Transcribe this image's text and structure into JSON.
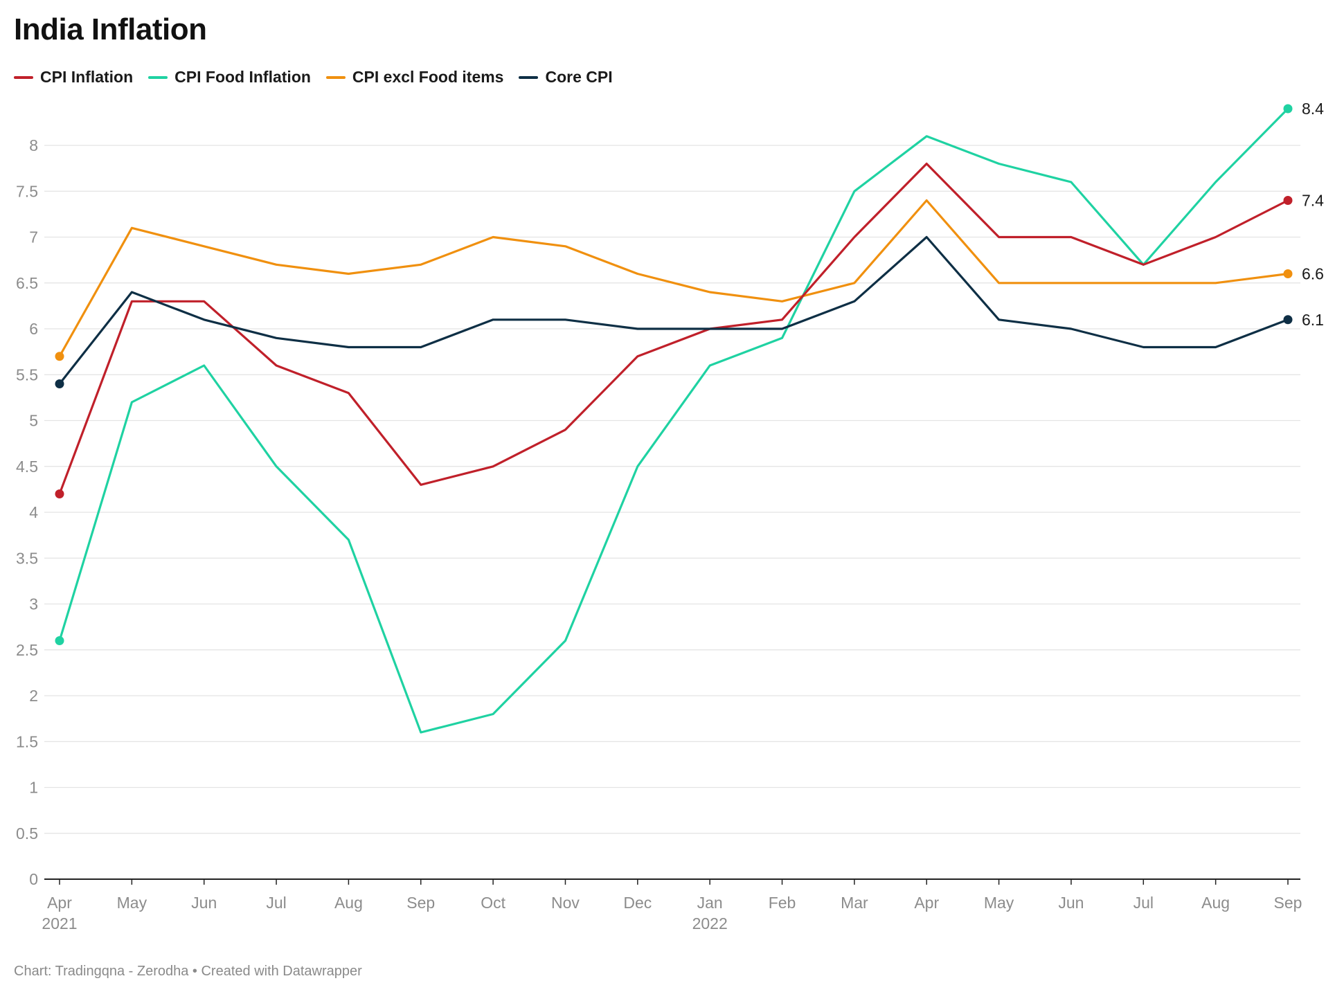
{
  "chart_data": {
    "type": "line",
    "title": "India Inflation",
    "xlabel": "",
    "ylabel": "",
    "ylim": [
      0,
      8.4
    ],
    "yticks": [
      0,
      0.5,
      1,
      1.5,
      2,
      2.5,
      3,
      3.5,
      4,
      4.5,
      5,
      5.5,
      6,
      6.5,
      7,
      7.5,
      8
    ],
    "grid": true,
    "legend_position": "top-left",
    "categories": [
      "Apr",
      "May",
      "Jun",
      "Jul",
      "Aug",
      "Sep",
      "Oct",
      "Nov",
      "Dec",
      "Jan",
      "Feb",
      "Mar",
      "Apr",
      "May",
      "Jun",
      "Jul",
      "Aug",
      "Sep"
    ],
    "category_years": [
      "2021",
      "",
      "",
      "",
      "",
      "",
      "",
      "",
      "",
      "2022",
      "",
      "",
      "",
      "",
      "",
      "",
      "",
      ""
    ],
    "series": [
      {
        "name": "CPI Inflation",
        "color": "#c0202a",
        "values": [
          4.2,
          6.3,
          6.3,
          5.6,
          5.3,
          4.3,
          4.5,
          4.9,
          5.7,
          6.0,
          6.1,
          7.0,
          7.8,
          7.0,
          7.0,
          6.7,
          7.0,
          7.4
        ],
        "end_label": "7.4"
      },
      {
        "name": "CPI Food Inflation",
        "color": "#1fd2a2",
        "values": [
          2.6,
          5.2,
          5.6,
          4.5,
          3.7,
          1.6,
          1.8,
          2.6,
          4.5,
          5.6,
          5.9,
          7.5,
          8.1,
          7.8,
          7.6,
          6.7,
          7.6,
          8.4
        ],
        "end_label": "8.4"
      },
      {
        "name": "CPI excl Food items",
        "color": "#f0900f",
        "values": [
          5.7,
          7.1,
          6.9,
          6.7,
          6.6,
          6.7,
          7.0,
          6.9,
          6.6,
          6.4,
          6.3,
          6.5,
          7.4,
          6.5,
          6.5,
          6.5,
          6.5,
          6.6
        ],
        "end_label": "6.6"
      },
      {
        "name": "Core CPI",
        "color": "#0e2f45",
        "values": [
          5.4,
          6.4,
          6.1,
          5.9,
          5.8,
          5.8,
          6.1,
          6.1,
          6.0,
          6.0,
          6.0,
          6.3,
          7.0,
          6.1,
          6.0,
          5.8,
          5.8,
          6.1
        ],
        "end_label": "6.1"
      }
    ]
  },
  "footer": "Chart: Tradingqna - Zerodha • Created with Datawrapper"
}
